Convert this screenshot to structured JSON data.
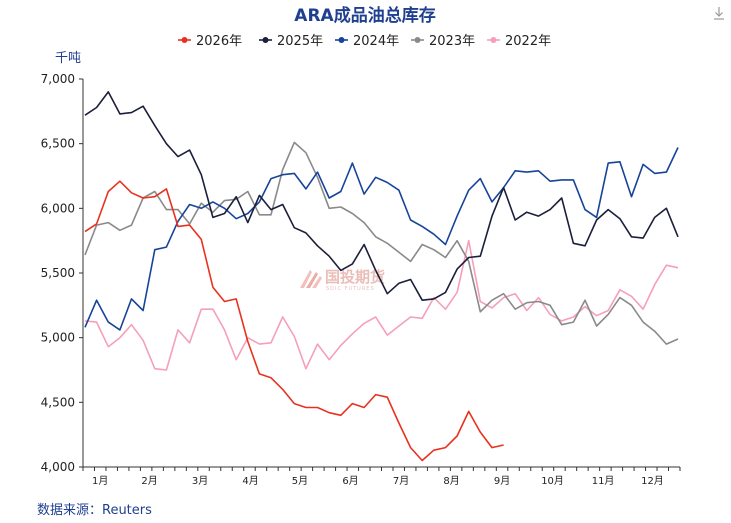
{
  "chart_data": {
    "type": "line",
    "title": "ARA成品油总库存",
    "ylabel": "千吨",
    "source": "数据来源：Reuters",
    "ylim": [
      4000,
      7000
    ],
    "y_ticks": [
      "4,000",
      "4,500",
      "5,000",
      "5,500",
      "6,000",
      "6,500",
      "7,000"
    ],
    "x_ticks": [
      "1月",
      "2月",
      "3月",
      "4月",
      "5月",
      "6月",
      "7月",
      "8月",
      "9月",
      "10月",
      "11月",
      "12月"
    ],
    "legend_position": "top",
    "grid": false,
    "series": [
      {
        "name": "2026年",
        "color": "#e8321f",
        "values": [
          5820,
          5880,
          6130,
          6210,
          6120,
          6080,
          6090,
          6150,
          5860,
          5870,
          5760,
          5390,
          5280,
          5300,
          4970,
          4720,
          4690,
          4600,
          4490,
          4460,
          4460,
          4420,
          4400,
          4490,
          4460,
          4560,
          4540,
          4340,
          4150,
          4050,
          4130,
          4150,
          4240,
          4430,
          4270,
          4150,
          4170
        ]
      },
      {
        "name": "2025年",
        "color": "#1b1f3b",
        "values": [
          6720,
          6780,
          6900,
          6730,
          6740,
          6790,
          6640,
          6500,
          6400,
          6450,
          6260,
          5930,
          5960,
          6090,
          5890,
          6100,
          5990,
          6030,
          5850,
          5810,
          5710,
          5630,
          5520,
          5570,
          5720,
          5520,
          5340,
          5420,
          5450,
          5290,
          5300,
          5350,
          5530,
          5620,
          5630,
          5940,
          6160,
          5910,
          5970,
          5940,
          5990,
          6080,
          5730,
          5710,
          5910,
          5990,
          5920,
          5780,
          5770,
          5930,
          6000,
          5780
        ]
      },
      {
        "name": "2024年",
        "color": "#17449a",
        "values": [
          5080,
          5290,
          5120,
          5060,
          5300,
          5210,
          5680,
          5700,
          5900,
          6030,
          6000,
          6050,
          6000,
          5920,
          5960,
          6050,
          6230,
          6260,
          6270,
          6150,
          6280,
          6080,
          6130,
          6350,
          6110,
          6240,
          6200,
          6140,
          5910,
          5860,
          5800,
          5720,
          5940,
          6140,
          6230,
          6050,
          6160,
          6290,
          6280,
          6290,
          6210,
          6220,
          6220,
          5990,
          5930,
          6350,
          6360,
          6090,
          6340,
          6270,
          6280,
          6470
        ]
      },
      {
        "name": "2023年",
        "color": "#8a8a8a",
        "values": [
          5640,
          5870,
          5890,
          5830,
          5870,
          6080,
          6130,
          5990,
          5990,
          5880,
          6040,
          5970,
          6060,
          6070,
          6130,
          5950,
          5950,
          6300,
          6510,
          6430,
          6240,
          6000,
          6010,
          5960,
          5890,
          5780,
          5730,
          5660,
          5590,
          5720,
          5680,
          5620,
          5750,
          5590,
          5200,
          5290,
          5340,
          5220,
          5270,
          5280,
          5250,
          5100,
          5120,
          5290,
          5090,
          5180,
          5310,
          5250,
          5120,
          5050,
          4950,
          4990
        ]
      },
      {
        "name": "2022年",
        "color": "#f5a0b8",
        "values": [
          5130,
          5120,
          4930,
          5000,
          5100,
          4980,
          4760,
          4750,
          5060,
          4960,
          5220,
          5220,
          5060,
          4830,
          5000,
          4950,
          4960,
          5160,
          5010,
          4760,
          4950,
          4830,
          4940,
          5030,
          5110,
          5160,
          5020,
          5090,
          5160,
          5150,
          5310,
          5220,
          5350,
          5750,
          5280,
          5230,
          5310,
          5340,
          5210,
          5310,
          5180,
          5130,
          5160,
          5240,
          5170,
          5210,
          5370,
          5320,
          5220,
          5410,
          5560,
          5540
        ]
      }
    ]
  },
  "watermark": {
    "text": "国投期货",
    "sub": "SDIC FUTURES"
  },
  "toolbar": {
    "download_icon": "download-icon"
  }
}
